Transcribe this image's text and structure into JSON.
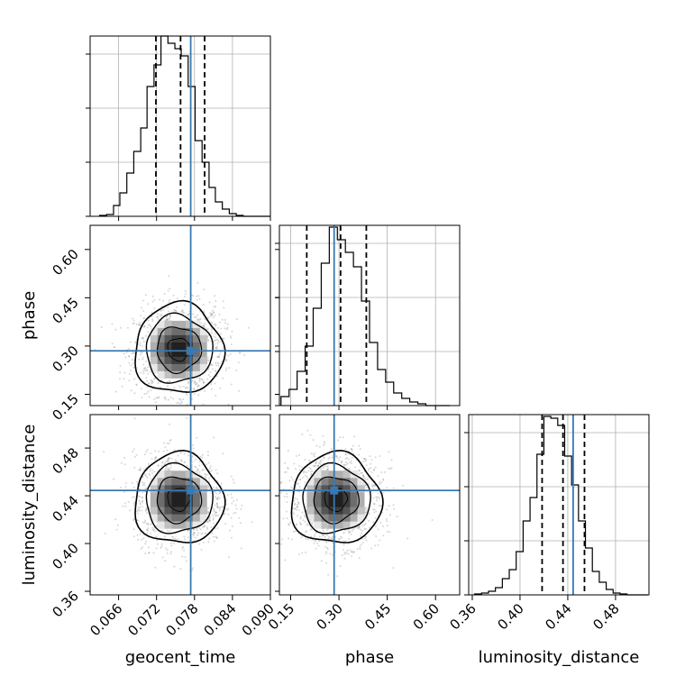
{
  "chart_data": {
    "type": "corner",
    "parameters": [
      "geocent_time",
      "phase",
      "luminosity_distance"
    ],
    "truths": {
      "geocent_time": 0.0774,
      "phase": 0.285,
      "luminosity_distance": 0.4445
    },
    "colors": {
      "truth": "#3a78b0",
      "hist": "#000000",
      "grid": "#b0b0b0",
      "scatter": "#8c8c8c"
    },
    "axes": {
      "geocent_time": {
        "lim": [
          0.0615,
          0.09
        ],
        "ticks": [
          0.066,
          0.072,
          0.078,
          0.084,
          0.09
        ],
        "tick_labels": [
          "0.066",
          "0.072",
          "0.078",
          "0.084",
          "0.090"
        ]
      },
      "phase": {
        "lim": [
          0.115,
          0.675
        ],
        "ticks": [
          0.15,
          0.3,
          0.45,
          0.6
        ],
        "tick_labels": [
          "0.15",
          "0.30",
          "0.45",
          "0.60"
        ]
      },
      "luminosity_distance": {
        "lim": [
          0.357,
          0.508
        ],
        "ticks": [
          0.36,
          0.4,
          0.44,
          0.48
        ],
        "tick_labels": [
          "0.36",
          "0.40",
          "0.44",
          "0.48"
        ]
      }
    },
    "marginals": {
      "geocent_time": {
        "edges": [
          0.063,
          0.0641,
          0.0652,
          0.0662,
          0.0673,
          0.0684,
          0.0695,
          0.0705,
          0.0716,
          0.0727,
          0.0738,
          0.0749,
          0.0759,
          0.077,
          0.0781,
          0.0792,
          0.0803,
          0.0813,
          0.0824,
          0.0835,
          0.0846,
          0.0857,
          0.0867,
          0.0878,
          0.0889,
          0.09
        ],
        "counts": [
          0.005,
          0.01,
          0.06,
          0.13,
          0.24,
          0.36,
          0.49,
          0.72,
          0.84,
          1.0,
          0.96,
          0.93,
          0.89,
          0.72,
          0.42,
          0.3,
          0.16,
          0.08,
          0.04,
          0.015,
          0.005,
          0,
          0,
          0,
          0
        ],
        "quantiles": [
          0.0719,
          0.0758,
          0.0796
        ]
      },
      "phase": {
        "edges": [
          0.12,
          0.145,
          0.17,
          0.195,
          0.22,
          0.245,
          0.27,
          0.295,
          0.32,
          0.345,
          0.37,
          0.395,
          0.42,
          0.445,
          0.47,
          0.495,
          0.52,
          0.545,
          0.57,
          0.595,
          0.62,
          0.645
        ],
        "counts": [
          0.05,
          0.09,
          0.19,
          0.33,
          0.54,
          0.79,
          0.99,
          0.92,
          0.85,
          0.77,
          0.58,
          0.35,
          0.2,
          0.13,
          0.07,
          0.04,
          0.02,
          0.01,
          0,
          0,
          0
        ],
        "quantiles": [
          0.2,
          0.305,
          0.385
        ]
      },
      "luminosity_distance": {
        "edges": [
          0.362,
          0.3678,
          0.3736,
          0.3794,
          0.3852,
          0.391,
          0.3968,
          0.4026,
          0.4084,
          0.4142,
          0.42,
          0.4258,
          0.4316,
          0.4374,
          0.4432,
          0.449,
          0.4548,
          0.4606,
          0.4664,
          0.4722,
          0.478,
          0.4838,
          0.4896,
          0.4954,
          0.5012,
          0.507
        ],
        "counts": [
          0.005,
          0.01,
          0.02,
          0.04,
          0.09,
          0.14,
          0.24,
          0.41,
          0.54,
          0.78,
          0.99,
          0.98,
          0.94,
          0.77,
          0.61,
          0.41,
          0.26,
          0.13,
          0.07,
          0.03,
          0.01,
          0.005,
          0,
          0,
          0
        ],
        "quantiles": [
          0.4185,
          0.436,
          0.454
        ]
      }
    },
    "correlations": {
      "phase|geocent_time": 0.05,
      "luminosity_distance|geocent_time": 0.0,
      "luminosity_distance|phase": 0.0
    },
    "means": {
      "geocent_time": 0.0755,
      "phase": 0.29,
      "luminosity_distance": 0.437
    },
    "sds": {
      "geocent_time": 0.0035,
      "phase": 0.07,
      "luminosity_distance": 0.019
    }
  }
}
